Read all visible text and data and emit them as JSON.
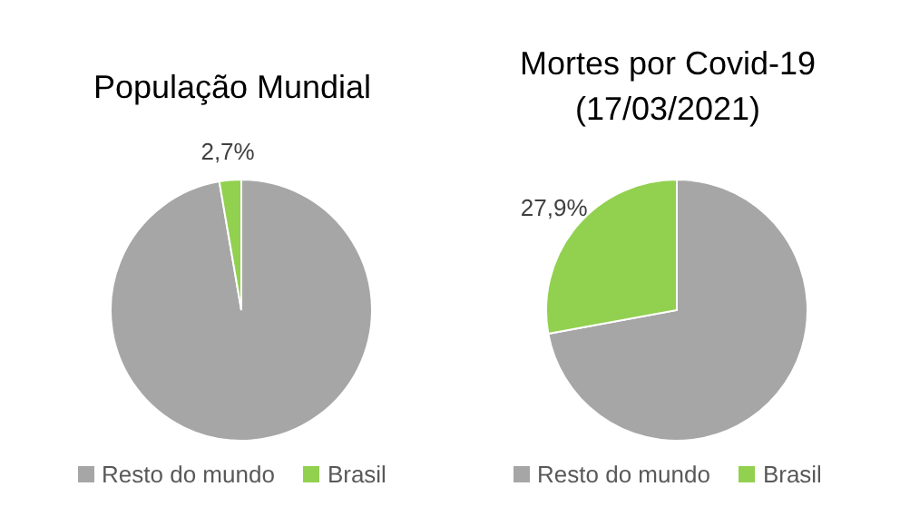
{
  "chart_data": [
    {
      "type": "pie",
      "title": "População Mundial",
      "categories": [
        "Resto do mundo",
        "Brasil"
      ],
      "values": [
        97.3,
        2.7
      ],
      "value_labels": [
        null,
        "2,7%"
      ],
      "colors": [
        "#a6a6a6",
        "#92d050"
      ],
      "legend": "bottom"
    },
    {
      "type": "pie",
      "title": "Mortes por Covid-19 (17/03/2021)",
      "categories": [
        "Resto do mundo",
        "Brasil"
      ],
      "values": [
        72.1,
        27.9
      ],
      "value_labels": [
        null,
        "27,9%"
      ],
      "colors": [
        "#a6a6a6",
        "#92d050"
      ],
      "legend": "bottom"
    }
  ]
}
